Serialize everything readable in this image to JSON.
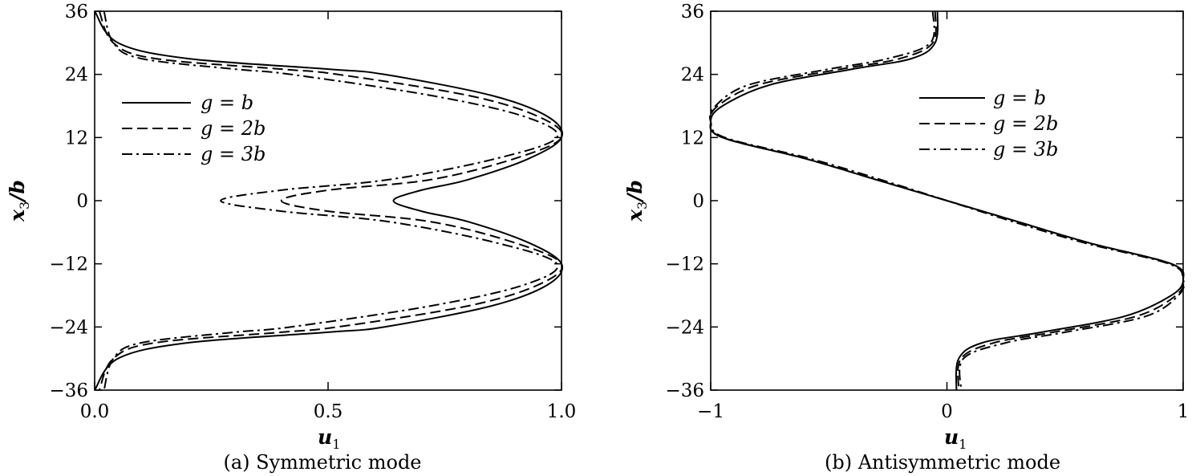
{
  "chart_data": [
    {
      "type": "line",
      "caption": "(a) Symmetric mode",
      "xlabel_base": "u",
      "xlabel_sub": "1",
      "ylabel_base": "x",
      "ylabel_sub": "3",
      "ylabel_tail": "/b",
      "xlim": [
        0.0,
        1.0
      ],
      "ylim": [
        -36,
        36
      ],
      "xticks": [
        0.0,
        0.5,
        1.0
      ],
      "xtick_labels": [
        "0.0",
        "0.5",
        "1.0"
      ],
      "yticks": [
        36,
        24,
        12,
        0,
        -12,
        -24,
        -36
      ],
      "ytick_labels": [
        "36",
        "24",
        "12",
        "0",
        "−12",
        "−24",
        "−36"
      ],
      "legend_position": "upper-left",
      "y_samples": [
        36,
        30,
        27,
        25,
        24,
        20,
        16,
        12,
        8,
        4,
        2,
        0,
        -2,
        -4,
        -8,
        -12,
        -16,
        -20,
        -24,
        -25,
        -27,
        -30,
        -36
      ],
      "series": [
        {
          "name": "g = b",
          "style": "solid",
          "x": [
            0.0,
            0.05,
            0.2,
            0.5,
            0.62,
            0.85,
            0.97,
            1.0,
            0.93,
            0.8,
            0.7,
            0.64,
            0.7,
            0.8,
            0.93,
            1.0,
            0.97,
            0.85,
            0.62,
            0.5,
            0.2,
            0.05,
            0.0
          ]
        },
        {
          "name": "g = 2b",
          "style": "dashed",
          "x": [
            0.01,
            0.04,
            0.13,
            0.4,
            0.52,
            0.8,
            0.95,
            1.0,
            0.9,
            0.72,
            0.5,
            0.4,
            0.5,
            0.72,
            0.9,
            1.0,
            0.95,
            0.8,
            0.52,
            0.4,
            0.13,
            0.04,
            0.01
          ]
        },
        {
          "name": "g = 3b",
          "style": "dashdot",
          "x": [
            0.02,
            0.04,
            0.1,
            0.3,
            0.42,
            0.72,
            0.92,
            0.99,
            0.86,
            0.63,
            0.4,
            0.27,
            0.4,
            0.63,
            0.86,
            0.99,
            0.92,
            0.72,
            0.42,
            0.3,
            0.1,
            0.04,
            0.02
          ]
        }
      ]
    },
    {
      "type": "line",
      "caption": "(b) Antisymmetric mode",
      "xlabel_base": "u",
      "xlabel_sub": "1",
      "ylabel_base": "x",
      "ylabel_sub": "3",
      "ylabel_tail": "/b",
      "xlim": [
        -1,
        1
      ],
      "ylim": [
        -36,
        36
      ],
      "xticks": [
        -1,
        0,
        1
      ],
      "xtick_labels": [
        "−1",
        "0",
        "1"
      ],
      "yticks": [
        36,
        24,
        12,
        0,
        -12,
        -24,
        -36
      ],
      "ytick_labels": [
        "36",
        "24",
        "12",
        "0",
        "−12",
        "−24",
        "−36"
      ],
      "legend_position": "upper-right",
      "y_samples": [
        36,
        30,
        27,
        25,
        22,
        18,
        15,
        12,
        8,
        4,
        0,
        -4,
        -8,
        -12,
        -15,
        -18,
        -22,
        -25,
        -27,
        -30,
        -36
      ],
      "series": [
        {
          "name": "g = b",
          "style": "solid",
          "x": [
            -0.04,
            -0.05,
            -0.15,
            -0.4,
            -0.75,
            -0.95,
            -1.0,
            -0.95,
            -0.6,
            -0.3,
            0.0,
            0.3,
            0.6,
            0.95,
            1.0,
            0.95,
            0.75,
            0.4,
            0.15,
            0.05,
            0.04
          ]
        },
        {
          "name": "g = 2b",
          "style": "dashed",
          "x": [
            -0.05,
            -0.06,
            -0.2,
            -0.45,
            -0.8,
            -0.97,
            -1.0,
            -0.95,
            -0.6,
            -0.3,
            0.0,
            0.3,
            0.6,
            0.95,
            1.0,
            0.97,
            0.8,
            0.45,
            0.2,
            0.06,
            0.05
          ]
        },
        {
          "name": "g = 3b",
          "style": "dashdot",
          "x": [
            -0.06,
            -0.07,
            -0.25,
            -0.5,
            -0.84,
            -0.98,
            -1.0,
            -0.94,
            -0.58,
            -0.28,
            0.0,
            0.28,
            0.58,
            0.94,
            1.0,
            0.98,
            0.84,
            0.5,
            0.25,
            0.07,
            0.06
          ]
        }
      ]
    }
  ]
}
